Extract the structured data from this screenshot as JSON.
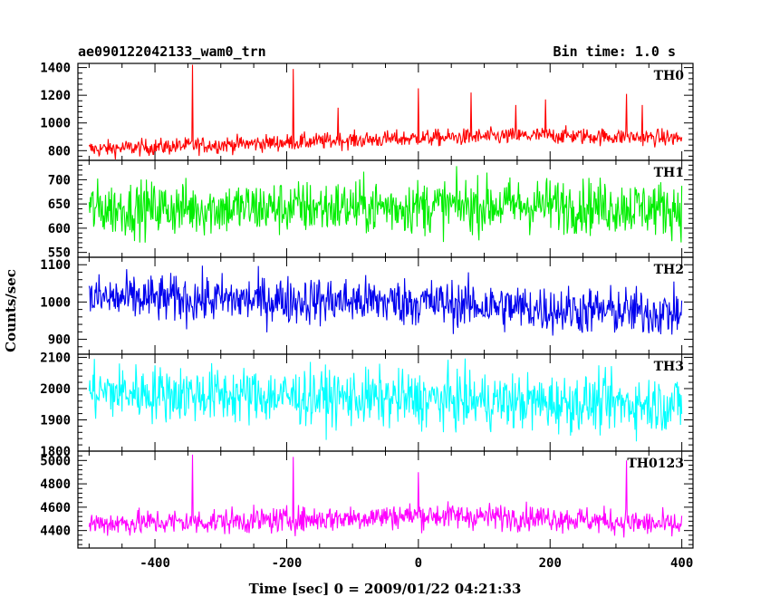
{
  "header": {
    "title": "ae090122042133_wam0_trn",
    "bin_time": "Bin time: 1.0 s"
  },
  "chart_data": {
    "type": "line",
    "xlabel": "Time [sec] 0 = 2009/01/22 04:21:33",
    "ylabel": "Counts/sec",
    "xlim": [
      -517,
      417
    ],
    "x_range": [
      -500,
      400
    ],
    "bin_seconds": 1.0,
    "x_ticks": [
      -400,
      -200,
      0,
      200,
      400
    ],
    "grid": false,
    "legend": "none",
    "panels": [
      {
        "label": "TH0",
        "color": "#ff0000",
        "ylim": [
          730,
          1430
        ],
        "y_ticks": [
          800,
          1000,
          1200,
          1400
        ],
        "baseline": {
          "x": [
            -500,
            -200,
            0,
            200,
            400
          ],
          "y": [
            810,
            860,
            890,
            910,
            890
          ]
        },
        "noise_std": 30,
        "spikes": [
          {
            "x": -343,
            "y": 1420
          },
          {
            "x": -190,
            "y": 1390
          },
          {
            "x": -122,
            "y": 1110
          },
          {
            "x": 0,
            "y": 1250
          },
          {
            "x": 80,
            "y": 1220
          },
          {
            "x": 148,
            "y": 1130
          },
          {
            "x": 193,
            "y": 1170
          },
          {
            "x": 316,
            "y": 1210
          },
          {
            "x": 340,
            "y": 1130
          }
        ]
      },
      {
        "label": "TH1",
        "color": "#00ee00",
        "ylim": [
          540,
          740
        ],
        "y_ticks": [
          550,
          600,
          650,
          700
        ],
        "baseline": {
          "x": [
            -500,
            -200,
            0,
            200,
            400
          ],
          "y": [
            640,
            642,
            645,
            648,
            640
          ]
        },
        "noise_std": 28,
        "spikes": []
      },
      {
        "label": "TH2",
        "color": "#0000ee",
        "ylim": [
          860,
          1120
        ],
        "y_ticks": [
          900,
          1000,
          1100
        ],
        "baseline": {
          "x": [
            -500,
            -200,
            0,
            200,
            400
          ],
          "y": [
            1010,
            1005,
            1000,
            980,
            970
          ]
        },
        "noise_std": 32,
        "spikes": []
      },
      {
        "label": "TH3",
        "color": "#00ffff",
        "ylim": [
          1800,
          2110
        ],
        "y_ticks": [
          1800,
          1900,
          2000,
          2100
        ],
        "baseline": {
          "x": [
            -500,
            -200,
            0,
            200,
            400
          ],
          "y": [
            1990,
            1975,
            1965,
            1955,
            1950
          ]
        },
        "noise_std": 45,
        "spikes": []
      },
      {
        "label": "TH0123",
        "color": "#ff00ff",
        "ylim": [
          4250,
          5080
        ],
        "y_ticks": [
          4400,
          4600,
          4800,
          5000
        ],
        "baseline": {
          "x": [
            -500,
            -200,
            0,
            200,
            400
          ],
          "y": [
            4460,
            4490,
            4530,
            4510,
            4440
          ]
        },
        "noise_std": 55,
        "spikes": [
          {
            "x": -343,
            "y": 5050
          },
          {
            "x": -190,
            "y": 5030
          },
          {
            "x": 0,
            "y": 4900
          },
          {
            "x": 316,
            "y": 5000
          }
        ]
      }
    ]
  }
}
